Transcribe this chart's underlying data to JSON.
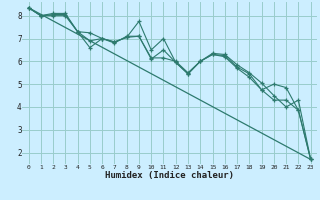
{
  "xlabel": "Humidex (Indice chaleur)",
  "background_color": "#cceeff",
  "grid_color": "#99cccc",
  "line_color": "#2d7a6e",
  "xlim": [
    -0.5,
    23.5
  ],
  "ylim": [
    1.5,
    8.6
  ],
  "yticks": [
    2,
    3,
    4,
    5,
    6,
    7,
    8
  ],
  "xticks": [
    0,
    1,
    2,
    3,
    4,
    5,
    6,
    7,
    8,
    9,
    10,
    11,
    12,
    13,
    14,
    15,
    16,
    17,
    18,
    19,
    20,
    21,
    22,
    23
  ],
  "lines": [
    {
      "x": [
        0,
        1,
        2,
        3,
        4,
        5,
        6,
        7,
        8,
        9,
        10,
        11,
        12,
        13,
        14,
        15,
        16,
        17,
        18,
        19,
        20,
        21,
        22,
        23
      ],
      "y": [
        8.35,
        8.0,
        8.0,
        8.0,
        7.3,
        6.6,
        7.0,
        6.8,
        7.1,
        7.1,
        6.15,
        6.15,
        6.0,
        5.5,
        6.0,
        6.3,
        6.2,
        5.7,
        5.3,
        4.75,
        4.3,
        4.3,
        3.85,
        1.7
      ]
    },
    {
      "x": [
        0,
        1,
        2,
        3,
        4,
        5,
        6,
        7,
        8,
        9,
        10,
        11,
        12,
        13,
        14,
        15,
        16,
        17,
        18,
        19,
        20,
        21,
        22,
        23
      ],
      "y": [
        8.35,
        8.0,
        8.1,
        8.1,
        7.3,
        7.25,
        7.0,
        6.85,
        7.05,
        7.75,
        6.5,
        7.0,
        5.95,
        5.45,
        6.0,
        6.35,
        6.3,
        5.85,
        5.5,
        5.05,
        4.5,
        4.0,
        4.3,
        1.7
      ]
    },
    {
      "x": [
        0,
        1,
        2,
        3,
        4,
        5,
        6,
        7,
        8,
        9,
        10,
        11,
        12,
        13,
        14,
        15,
        16,
        17,
        18,
        19,
        20,
        21,
        22,
        23
      ],
      "y": [
        8.35,
        8.0,
        8.05,
        8.05,
        7.3,
        6.9,
        7.0,
        6.85,
        7.05,
        7.1,
        6.1,
        6.5,
        5.95,
        5.45,
        6.0,
        6.3,
        6.25,
        5.75,
        5.45,
        4.75,
        5.0,
        4.85,
        3.85,
        1.7
      ]
    },
    {
      "x": [
        0,
        23
      ],
      "y": [
        8.35,
        1.7
      ]
    }
  ]
}
